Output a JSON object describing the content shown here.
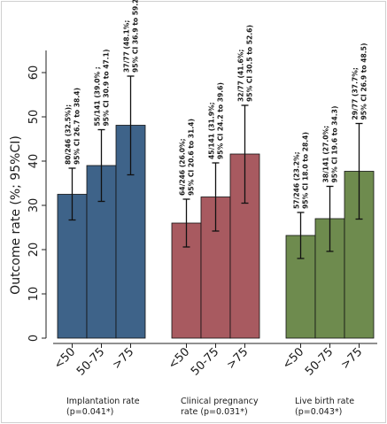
{
  "chart_data": {
    "type": "bar",
    "ylabel": "Outcome rate (%; 95%CI)",
    "ylim": [
      0,
      65
    ],
    "yticks": [
      0,
      10,
      20,
      30,
      40,
      50,
      60
    ],
    "grid": false,
    "legend": "none",
    "groups": [
      {
        "label_line1": "Implantation rate",
        "label_line2": "(p=0.041*)",
        "color": "#3e6389",
        "bars": [
          {
            "category": "<50",
            "value": 32.5,
            "ci_low": 26.7,
            "ci_high": 38.4,
            "label_line1": "80/246 (32.5%);",
            "label_line2": "95% CI 26.7 to 38.4)"
          },
          {
            "category": "50-75",
            "value": 39.0,
            "ci_low": 30.9,
            "ci_high": 47.1,
            "label_line1": "55/141 (39.0% ;",
            "label_line2": "95% CI 30.9 to 47.1)"
          },
          {
            "category": ">75",
            "value": 48.1,
            "ci_low": 36.9,
            "ci_high": 59.2,
            "label_line1": "37/77 (48.1%;",
            "label_line2": "95% CI 36.9 to 59.2)"
          }
        ]
      },
      {
        "label_line1": "Clinical pregnancy",
        "label_line2": "rate (p=0.031*)",
        "color": "#a85a60",
        "bars": [
          {
            "category": "<50",
            "value": 26.0,
            "ci_low": 20.6,
            "ci_high": 31.4,
            "label_line1": "64/246 (26.0%;",
            "label_line2": "95% CI 20.6 to 31.4)"
          },
          {
            "category": "50-75",
            "value": 31.9,
            "ci_low": 24.2,
            "ci_high": 39.6,
            "label_line1": "45/141 (31.9%;",
            "label_line2": "95% CI 24.2 to 39.6)"
          },
          {
            "category": ">75",
            "value": 41.6,
            "ci_low": 30.5,
            "ci_high": 52.6,
            "label_line1": "32/77 (41.6%;",
            "label_line2": "95% CI 30.5 to 52.6)"
          }
        ]
      },
      {
        "label_line1": "Live birth rate",
        "label_line2": "(p=0.043*)",
        "color": "#6e8b4e",
        "bars": [
          {
            "category": "<50",
            "value": 23.2,
            "ci_low": 18.0,
            "ci_high": 28.4,
            "label_line1": "57/246 (23.2%;",
            "label_line2": "95% CI 18.0 to 28.4)"
          },
          {
            "category": "50-75",
            "value": 27.0,
            "ci_low": 19.6,
            "ci_high": 34.3,
            "label_line1": "38/141 (27.0%;",
            "label_line2": "95% CI 19.6 to 34.3)"
          },
          {
            "category": ">75",
            "value": 37.7,
            "ci_low": 26.9,
            "ci_high": 48.5,
            "label_line1": "29/77 (37.7%;",
            "label_line2": "95% CI 26.9 to 48.5)"
          }
        ]
      }
    ]
  }
}
